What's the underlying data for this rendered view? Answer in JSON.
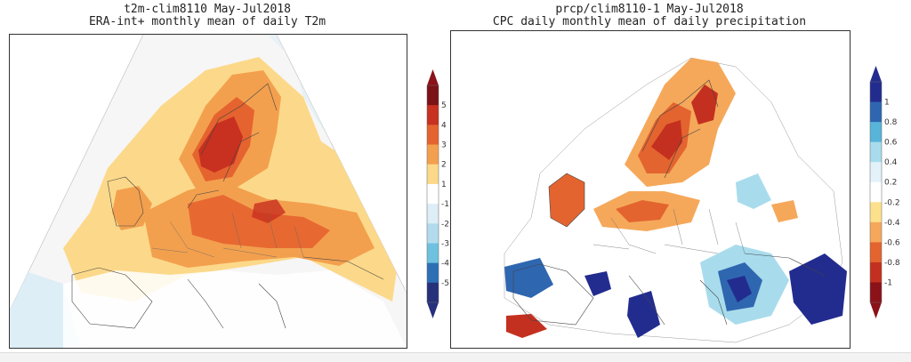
{
  "left_panel": {
    "title_line1": "t2m-clim8110 May-Jul2018",
    "title_line2": "ERA-int+ monthly mean of daily T2m",
    "colorbar": {
      "labels": [
        "5",
        "4",
        "3",
        "2",
        "1",
        "-1",
        "-2",
        "-3",
        "-4",
        "-5"
      ],
      "colors": [
        "#7b1216",
        "#c8301f",
        "#e5632f",
        "#f3a04e",
        "#fcd98a",
        "#ffffff",
        "#ddeef7",
        "#b2dcee",
        "#6fc2df",
        "#2c6fb5",
        "#27307a"
      ],
      "arrow_top_color": "#8a1218",
      "arrow_bottom_color": "#27307a"
    }
  },
  "right_panel": {
    "title_line1": "prcp/clim8110-1 May-Jul2018",
    "title_line2": "CPC daily monthly mean of daily precipitation",
    "colorbar": {
      "labels": [
        "1",
        "0.8",
        "0.6",
        "0.4",
        "0.2",
        "-0.2",
        "-0.4",
        "-0.6",
        "-0.8",
        "-1"
      ],
      "colors": [
        "#222c8f",
        "#2f66b0",
        "#58b4d8",
        "#a8dcec",
        "#e2f2f8",
        "#ffffff",
        "#fde08c",
        "#f5a85a",
        "#e3642f",
        "#c4301f",
        "#8a1218"
      ],
      "arrow_top_color": "#222c8f",
      "arrow_bottom_color": "#8a1218"
    }
  },
  "colors": {
    "warm_dark": "#c8301f",
    "warm_mid": "#e5632f",
    "warm_light": "#f3a04e",
    "warm_pale": "#fcd98a",
    "cool_pale": "#ddeef7",
    "wet_dark": "#222c8f",
    "wet_mid": "#2f66b0",
    "wet_light": "#a8dcec"
  }
}
